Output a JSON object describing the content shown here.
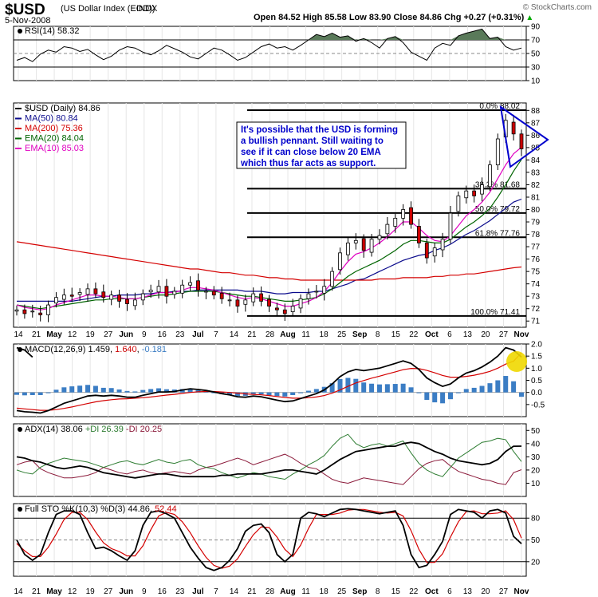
{
  "header": {
    "symbol": "$USD",
    "name": "(US Dollar Index (EOD))",
    "exchange": "INDX",
    "date": "5-Nov-2008",
    "quote": "Open 84.52  High 85.58  Low 83.90  Close 84.86  Chg +0.27 (+0.31%)",
    "quote_arrow": "▲",
    "watermark": "© StockCharts.com"
  },
  "colors": {
    "price": "#000000",
    "ma50": "#0a0a8c",
    "ma200": "#d40000",
    "ema20": "#006400",
    "ema10": "#e000c0",
    "fib": "#000000",
    "rsi_fill": "#5a7a5a",
    "macd_hist": "#3b7dc4",
    "adx": "#000000",
    "plus_di": "#2e7d32",
    "minus_di": "#8b1a3a",
    "sto_k": "#000000",
    "sto_d": "#d40000",
    "highlight": "#f0d800",
    "annotation_text": "#0000cc",
    "pennant": "#0000cc"
  },
  "rsi_legend": "RSI(14) 58.32",
  "price_legend": {
    "main": "$USD (Daily) 84.86",
    "ma50": "MA(50) 80.84",
    "ma200": "MA(200) 75.36",
    "ema20": "EMA(20) 84.04",
    "ema10": "EMA(10) 85.03"
  },
  "annotation": [
    "It's possible that the USD is forming",
    "a bullish pennant.  Still waiting to",
    "see if it can close below 20 EMA",
    "which thus far acts as support."
  ],
  "fib_labels": [
    "0.0% 88.02",
    "38.2% 81.68",
    "50.0% 79.72",
    "61.8% 77.76",
    "100.0% 71.41"
  ],
  "macd_legend": {
    "main": "MACD(12,26,9) ",
    "v1": "1.459",
    "sep": ", ",
    "v2": "1.640",
    "sep2": ", ",
    "v3": "-0.181"
  },
  "adx_legend": {
    "main": "ADX(14) 38.06 ",
    "pdi": "+DI 26.39",
    "mdi": " -DI 20.25"
  },
  "sto_legend": {
    "main": "Full STO %K(10,3) %D(3) 44.86, ",
    "d": "52.44"
  },
  "x_ticks": [
    "14",
    "21",
    "May",
    "12",
    "19",
    "27",
    "Jun",
    "9",
    "16",
    "23",
    "Jul",
    "7",
    "14",
    "21",
    "28",
    "Aug",
    "11",
    "18",
    "25",
    "Sep",
    "8",
    "15",
    "22",
    "Oct",
    "6",
    "13",
    "20",
    "27",
    "Nov"
  ],
  "chart_data": [
    {
      "type": "line",
      "title": "RSI(14)",
      "ylim": [
        10,
        90
      ],
      "y_ticks": [
        90,
        70,
        50,
        30,
        10
      ],
      "reference_lines": [
        70,
        30
      ],
      "last": 58.32,
      "series": [
        {
          "name": "RSI(14)",
          "values": [
            40,
            44,
            38,
            49,
            55,
            52,
            60,
            58,
            53,
            56,
            48,
            41,
            46,
            55,
            60,
            58,
            52,
            48,
            54,
            62,
            57,
            52,
            45,
            42,
            50,
            58,
            55,
            48,
            40,
            44,
            52,
            60,
            64,
            58,
            60,
            55,
            62,
            70,
            78,
            75,
            80,
            74,
            76,
            68,
            72,
            66,
            58,
            72,
            75,
            66,
            52,
            46,
            40,
            58,
            65,
            62,
            76,
            80,
            83,
            86,
            72,
            74,
            60,
            55,
            58
          ]
        }
      ]
    },
    {
      "type": "candlestick",
      "title": "$USD (Daily)",
      "ylim": [
        70.5,
        88.6
      ],
      "y_ticks": [
        88,
        87,
        86,
        85,
        84,
        83,
        82,
        81,
        80,
        79,
        78,
        77,
        76,
        75,
        74,
        73,
        72,
        71
      ],
      "fib_levels": [
        88.02,
        81.68,
        79.72,
        77.76,
        71.41
      ],
      "last_close": 84.86,
      "close": [
        71.9,
        71.6,
        71.8,
        71.5,
        72.3,
        72.9,
        73.1,
        73.0,
        73.3,
        73.6,
        73.2,
        72.9,
        73.1,
        72.6,
        72.4,
        72.7,
        73.2,
        73.5,
        73.8,
        73.0,
        73.4,
        73.9,
        74.1,
        73.5,
        73.4,
        73.1,
        72.8,
        72.7,
        72.2,
        72.7,
        73.2,
        72.6,
        72.2,
        71.9,
        71.6,
        72.2,
        72.8,
        73.2,
        73.4,
        73.8,
        75.0,
        76.5,
        77.3,
        77.5,
        76.7,
        77.6,
        77.9,
        78.8,
        79.3,
        80.0,
        78.8,
        77.3,
        76.1,
        76.9,
        77.6,
        79.7,
        81.1,
        81.5,
        81.1,
        82.0,
        83.6,
        85.7,
        87.2,
        86.1,
        84.9
      ],
      "series": [
        {
          "name": "MA(50)",
          "values": [
            72.6,
            72.6,
            72.6,
            72.6,
            72.6,
            72.6,
            72.6,
            72.6,
            72.7,
            72.8,
            72.9,
            73.0,
            73.0,
            73.1,
            73.1,
            73.1,
            73.2,
            73.2,
            73.3,
            73.3,
            73.4,
            73.4,
            73.4,
            73.5,
            73.5,
            73.5,
            73.5,
            73.5,
            73.5,
            73.4,
            73.4,
            73.4,
            73.3,
            73.2,
            73.2,
            73.3,
            73.3,
            73.3,
            73.4,
            73.4,
            73.6,
            73.8,
            74.0,
            74.3,
            74.4,
            74.7,
            75.0,
            75.3,
            75.6,
            75.9,
            76.1,
            76.3,
            76.4,
            76.7,
            76.9,
            77.2,
            77.6,
            78.0,
            78.3,
            78.7,
            79.1,
            79.6,
            80.1,
            80.6,
            80.84
          ]
        },
        {
          "name": "MA(200)",
          "values": [
            77.4,
            77.3,
            77.2,
            77.1,
            77.0,
            76.9,
            76.8,
            76.7,
            76.6,
            76.5,
            76.4,
            76.3,
            76.2,
            76.1,
            76.0,
            75.9,
            75.8,
            75.7,
            75.6,
            75.5,
            75.4,
            75.3,
            75.2,
            75.2,
            75.1,
            75.0,
            74.9,
            74.9,
            74.8,
            74.7,
            74.7,
            74.6,
            74.5,
            74.5,
            74.4,
            74.4,
            74.3,
            74.3,
            74.3,
            74.3,
            74.3,
            74.3,
            74.3,
            74.3,
            74.3,
            74.3,
            74.4,
            74.4,
            74.4,
            74.5,
            74.5,
            74.5,
            74.5,
            74.6,
            74.6,
            74.7,
            74.7,
            74.8,
            74.8,
            74.9,
            75.0,
            75.1,
            75.2,
            75.3,
            75.36
          ]
        },
        {
          "name": "EMA(20)",
          "values": [
            72.3,
            72.2,
            72.1,
            72.0,
            72.1,
            72.2,
            72.3,
            72.4,
            72.5,
            72.6,
            72.7,
            72.7,
            72.8,
            72.8,
            72.8,
            72.8,
            72.9,
            73.0,
            73.1,
            73.1,
            73.2,
            73.3,
            73.4,
            73.4,
            73.4,
            73.4,
            73.3,
            73.2,
            73.1,
            73.0,
            73.0,
            72.9,
            72.8,
            72.7,
            72.6,
            72.6,
            72.7,
            72.8,
            72.9,
            73.2,
            73.6,
            74.1,
            74.6,
            75.0,
            75.3,
            75.6,
            75.9,
            76.3,
            76.7,
            77.2,
            77.5,
            77.5,
            77.4,
            77.3,
            77.3,
            77.6,
            78.1,
            78.6,
            79.0,
            79.5,
            80.1,
            81.0,
            82.0,
            83.1,
            84.04
          ]
        },
        {
          "name": "EMA(10)",
          "values": [
            72.3,
            72.1,
            72.0,
            71.9,
            72.0,
            72.3,
            72.5,
            72.7,
            72.9,
            73.1,
            73.1,
            73.0,
            73.0,
            72.9,
            72.8,
            72.8,
            72.9,
            73.1,
            73.3,
            73.3,
            73.3,
            73.5,
            73.7,
            73.7,
            73.6,
            73.5,
            73.3,
            73.1,
            72.9,
            72.8,
            72.9,
            72.8,
            72.6,
            72.4,
            72.2,
            72.2,
            72.4,
            72.6,
            72.9,
            73.4,
            74.1,
            75.0,
            75.8,
            76.4,
            76.6,
            76.9,
            77.3,
            77.8,
            78.4,
            79.0,
            79.0,
            78.5,
            77.9,
            77.5,
            77.4,
            77.9,
            78.7,
            79.5,
            80.0,
            80.6,
            81.4,
            82.5,
            83.6,
            84.5,
            85.03
          ]
        }
      ]
    },
    {
      "type": "line",
      "title": "MACD(12,26,9)",
      "ylim": [
        -1.0,
        2.0
      ],
      "y_ticks": [
        2.0,
        1.5,
        1.0,
        0.5,
        0.0,
        -0.5
      ],
      "series": [
        {
          "name": "MACD",
          "values": [
            -0.75,
            -0.8,
            -0.82,
            -0.85,
            -0.75,
            -0.6,
            -0.45,
            -0.35,
            -0.25,
            -0.15,
            -0.12,
            -0.15,
            -0.12,
            -0.15,
            -0.2,
            -0.2,
            -0.12,
            -0.05,
            0.02,
            0.02,
            0.04,
            0.1,
            0.15,
            0.12,
            0.08,
            0.02,
            -0.05,
            -0.1,
            -0.18,
            -0.2,
            -0.15,
            -0.18,
            -0.25,
            -0.32,
            -0.38,
            -0.35,
            -0.25,
            -0.15,
            -0.05,
            0.1,
            0.35,
            0.65,
            0.85,
            0.95,
            0.9,
            0.95,
            1.0,
            1.1,
            1.2,
            1.3,
            1.2,
            0.95,
            0.6,
            0.4,
            0.25,
            0.35,
            0.6,
            0.8,
            0.9,
            1.05,
            1.25,
            1.5,
            1.85,
            1.75,
            1.459
          ]
        },
        {
          "name": "Signal",
          "values": [
            -0.65,
            -0.68,
            -0.71,
            -0.74,
            -0.74,
            -0.71,
            -0.66,
            -0.6,
            -0.53,
            -0.46,
            -0.39,
            -0.34,
            -0.3,
            -0.27,
            -0.26,
            -0.24,
            -0.22,
            -0.19,
            -0.15,
            -0.11,
            -0.08,
            -0.04,
            0.0,
            0.03,
            0.04,
            0.04,
            0.02,
            0.0,
            -0.03,
            -0.06,
            -0.08,
            -0.1,
            -0.13,
            -0.17,
            -0.21,
            -0.24,
            -0.24,
            -0.22,
            -0.19,
            -0.13,
            -0.03,
            0.1,
            0.25,
            0.39,
            0.49,
            0.59,
            0.67,
            0.76,
            0.85,
            0.94,
            0.99,
            0.98,
            0.91,
            0.81,
            0.7,
            0.63,
            0.63,
            0.66,
            0.71,
            0.78,
            0.87,
            1.0,
            1.17,
            1.29,
            1.64
          ]
        }
      ]
    },
    {
      "type": "line",
      "title": "ADX(14)",
      "ylim": [
        0,
        55
      ],
      "y_ticks": [
        50,
        40,
        30,
        20,
        10
      ],
      "series": [
        {
          "name": "ADX",
          "values": [
            30,
            29,
            27,
            26,
            24,
            22,
            21,
            22,
            23,
            22,
            20,
            18,
            17,
            16,
            15,
            14,
            15,
            16,
            17,
            17,
            16,
            15,
            15,
            15,
            15,
            15,
            16,
            16,
            17,
            17,
            17,
            17,
            18,
            19,
            20,
            20,
            19,
            18,
            17,
            20,
            24,
            28,
            31,
            34,
            35,
            36,
            37,
            38,
            38,
            40,
            41,
            40,
            37,
            34,
            32,
            29,
            27,
            26,
            25,
            24,
            25,
            28,
            34,
            38,
            38.06
          ]
        },
        {
          "name": "+DI",
          "values": [
            20,
            18,
            17,
            22,
            25,
            27,
            29,
            28,
            27,
            26,
            24,
            22,
            24,
            26,
            27,
            25,
            24,
            26,
            28,
            26,
            25,
            27,
            28,
            24,
            22,
            21,
            18,
            16,
            14,
            16,
            18,
            17,
            15,
            14,
            13,
            17,
            20,
            24,
            27,
            31,
            38,
            44,
            47,
            40,
            37,
            39,
            40,
            38,
            40,
            42,
            33,
            25,
            20,
            17,
            15,
            22,
            29,
            33,
            37,
            41,
            42,
            44,
            43,
            34,
            26.39
          ]
        },
        {
          "name": "-DI",
          "values": [
            24,
            26,
            27,
            21,
            18,
            16,
            14,
            14,
            15,
            16,
            18,
            22,
            20,
            18,
            17,
            19,
            20,
            18,
            17,
            18,
            19,
            18,
            17,
            20,
            22,
            23,
            25,
            27,
            29,
            27,
            24,
            26,
            28,
            30,
            32,
            29,
            25,
            22,
            21,
            17,
            13,
            11,
            10,
            12,
            14,
            13,
            12,
            11,
            10,
            9,
            15,
            21,
            25,
            27,
            28,
            23,
            19,
            17,
            15,
            13,
            12,
            10,
            9,
            18,
            20.25
          ]
        }
      ]
    },
    {
      "type": "line",
      "title": "Full STO %K(10,3) %D(3)",
      "ylim": [
        0,
        100
      ],
      "y_ticks": [
        80,
        50,
        20
      ],
      "reference_lines": [
        80,
        50,
        20
      ],
      "series": [
        {
          "name": "%K",
          "values": [
            50,
            30,
            22,
            30,
            60,
            85,
            90,
            90,
            85,
            60,
            38,
            40,
            35,
            28,
            22,
            35,
            70,
            88,
            90,
            86,
            80,
            60,
            40,
            25,
            12,
            8,
            12,
            22,
            38,
            62,
            70,
            72,
            60,
            30,
            20,
            30,
            80,
            88,
            86,
            82,
            87,
            92,
            93,
            92,
            90,
            88,
            86,
            88,
            90,
            70,
            30,
            12,
            15,
            30,
            48,
            85,
            92,
            90,
            88,
            80,
            90,
            92,
            87,
            55,
            44.86
          ]
        },
        {
          "name": "%D",
          "values": [
            45,
            35,
            27,
            27,
            40,
            58,
            78,
            88,
            88,
            78,
            61,
            46,
            38,
            34,
            28,
            28,
            42,
            64,
            83,
            88,
            85,
            75,
            60,
            42,
            26,
            15,
            11,
            14,
            24,
            41,
            57,
            68,
            67,
            54,
            37,
            27,
            43,
            66,
            85,
            85,
            85,
            87,
            91,
            92,
            92,
            90,
            88,
            87,
            88,
            83,
            63,
            37,
            19,
            19,
            31,
            54,
            75,
            89,
            90,
            86,
            86,
            87,
            90,
            78,
            52.44
          ]
        }
      ]
    }
  ]
}
